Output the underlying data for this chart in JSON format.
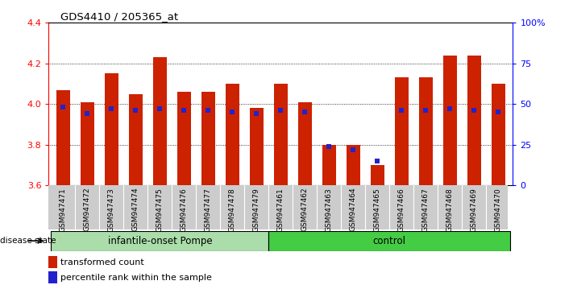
{
  "title": "GDS4410 / 205365_at",
  "samples": [
    "GSM947471",
    "GSM947472",
    "GSM947473",
    "GSM947474",
    "GSM947475",
    "GSM947476",
    "GSM947477",
    "GSM947478",
    "GSM947479",
    "GSM947461",
    "GSM947462",
    "GSM947463",
    "GSM947464",
    "GSM947465",
    "GSM947466",
    "GSM947467",
    "GSM947468",
    "GSM947469",
    "GSM947470"
  ],
  "transformed_count": [
    4.07,
    4.01,
    4.15,
    4.05,
    4.23,
    4.06,
    4.06,
    4.1,
    3.98,
    4.1,
    4.01,
    3.8,
    3.8,
    3.7,
    4.13,
    4.13,
    4.24,
    4.24,
    4.1
  ],
  "percentile_rank": [
    48,
    44,
    47,
    46,
    47,
    46,
    46,
    45,
    44,
    46,
    45,
    24,
    22,
    15,
    46,
    46,
    47,
    46,
    45
  ],
  "groups": [
    {
      "name": "infantile-onset Pompe",
      "start": 0,
      "end": 8,
      "color": "#90EE90"
    },
    {
      "name": "control",
      "start": 9,
      "end": 18,
      "color": "#33CC33"
    }
  ],
  "y_min": 3.6,
  "y_max": 4.4,
  "y_ticks": [
    3.6,
    3.8,
    4.0,
    4.2,
    4.4
  ],
  "right_y_ticks": [
    0,
    25,
    50,
    75,
    100
  ],
  "right_y_labels": [
    "0",
    "25",
    "50",
    "75",
    "100%"
  ],
  "bar_color": "#CC2200",
  "marker_color": "#2222CC",
  "bar_bottom": 3.6,
  "background_color": "#ffffff",
  "label_bg_color": "#cccccc",
  "group1_color": "#aaddaa",
  "group2_color": "#44cc44"
}
